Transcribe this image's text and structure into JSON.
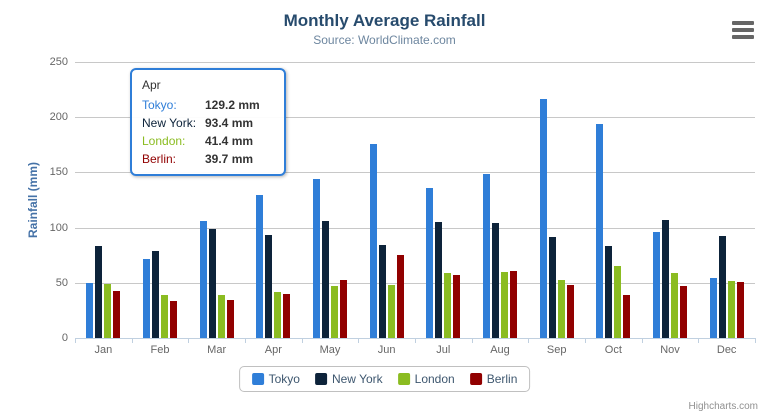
{
  "title": "Monthly Average Rainfall",
  "subtitle": "Source: WorldClimate.com",
  "y_axis": {
    "title": "Rainfall (mm)",
    "min": 0,
    "max": 250,
    "tick_interval": 50
  },
  "chart_data": {
    "type": "bar",
    "title": "Monthly Average Rainfall",
    "subtitle": "Source: WorldClimate.com",
    "categories": [
      "Jan",
      "Feb",
      "Mar",
      "Apr",
      "May",
      "Jun",
      "Jul",
      "Aug",
      "Sep",
      "Oct",
      "Nov",
      "Dec"
    ],
    "series": [
      {
        "name": "Tokyo",
        "color": "#2f7ed8",
        "values": [
          49.9,
          71.5,
          106.4,
          129.2,
          144.0,
          176.0,
          135.6,
          148.5,
          216.4,
          194.1,
          95.6,
          54.4
        ]
      },
      {
        "name": "New York",
        "color": "#0d233a",
        "values": [
          83.6,
          78.8,
          98.5,
          93.4,
          106.0,
          84.5,
          105.0,
          104.3,
          91.2,
          83.5,
          106.6,
          92.3
        ]
      },
      {
        "name": "London",
        "color": "#8bbc21",
        "values": [
          48.9,
          38.8,
          39.3,
          41.4,
          47.0,
          48.3,
          59.0,
          59.6,
          52.4,
          65.2,
          59.3,
          51.2
        ]
      },
      {
        "name": "Berlin",
        "color": "#910000",
        "values": [
          42.4,
          33.2,
          34.5,
          39.7,
          52.6,
          75.5,
          57.4,
          60.4,
          47.6,
          39.1,
          46.8,
          51.1
        ]
      }
    ],
    "xlabel": "",
    "ylabel": "Rainfall (mm)",
    "ylim": [
      0,
      250
    ],
    "grid": true,
    "legend_position": "bottom"
  },
  "tooltip": {
    "category": "Apr",
    "border_color": "#2f7ed8",
    "rows": [
      {
        "label": "Tokyo:",
        "value": "129.2 mm",
        "color": "#2f7ed8"
      },
      {
        "label": "New York:",
        "value": "93.4 mm",
        "color": "#0d233a"
      },
      {
        "label": "London:",
        "value": "41.4 mm",
        "color": "#8bbc21"
      },
      {
        "label": "Berlin:",
        "value": "39.7 mm",
        "color": "#910000"
      }
    ]
  },
  "credits": "Highcharts.com",
  "icons": {
    "export_menu": "hamburger-icon"
  },
  "colors": {
    "title": "#274b6d",
    "subtitle": "#6d869f",
    "axis_title": "#4572a7",
    "axis_labels": "#666666",
    "gridline": "#c8c8c8",
    "axis_line": "#c0d0e0",
    "legend_text": "#3e576f",
    "credits": "#909090"
  }
}
